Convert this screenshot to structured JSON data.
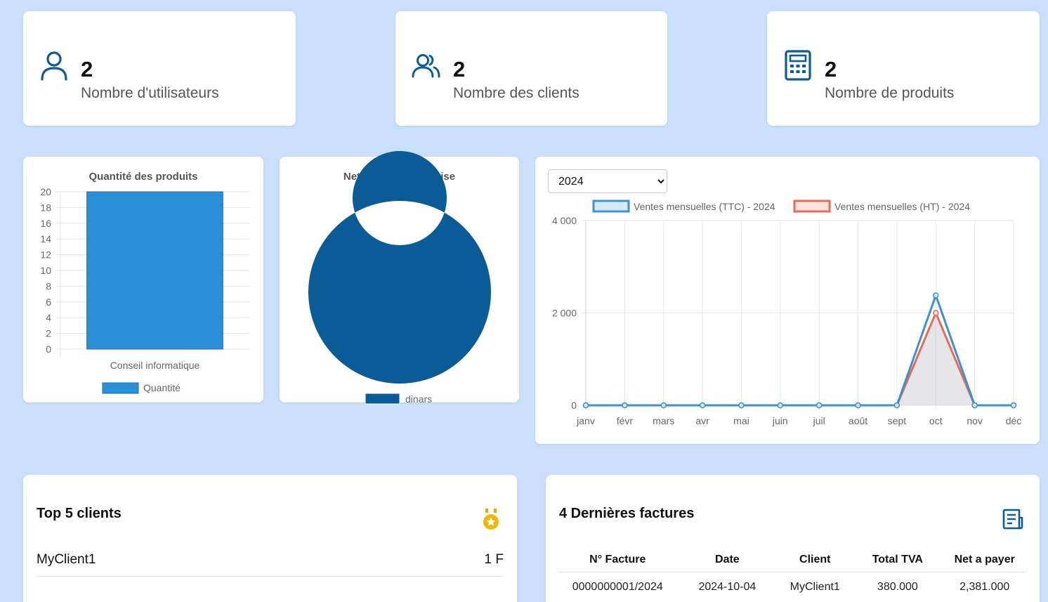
{
  "stats": [
    {
      "value": "2",
      "label": "Nombre d'utilisateurs",
      "icon": "user-icon"
    },
    {
      "value": "2",
      "label": "Nombre des clients",
      "icon": "users-icon"
    },
    {
      "value": "2",
      "label": "Nombre de produits",
      "icon": "calculator-icon"
    }
  ],
  "accent_color": "#0b5c96",
  "chart_data": [
    {
      "type": "bar",
      "title": "Quantité des produits",
      "categories": [
        "Conseil informatique"
      ],
      "series": [
        {
          "name": "Quantité",
          "values": [
            20
          ]
        }
      ],
      "ylim": [
        0,
        20
      ],
      "yticks": [
        "0",
        "2",
        "4",
        "6",
        "8",
        "10",
        "12",
        "14",
        "16",
        "18",
        "20"
      ],
      "color": "#2a8fd6",
      "grid": true,
      "legend": "bottom"
    },
    {
      "type": "pie",
      "title": "Net a payer par devise",
      "labels": [
        "dinars"
      ],
      "values": [
        2381
      ],
      "color": "#0b5c96",
      "legend": "bottom"
    },
    {
      "type": "line",
      "categories": [
        "janv",
        "févr",
        "mars",
        "avr",
        "mai",
        "juin",
        "juil",
        "août",
        "sept",
        "oct",
        "nov",
        "déc"
      ],
      "series": [
        {
          "name": "Ventes mensuelles (TTC) - 2024",
          "values": [
            0,
            0,
            0,
            0,
            0,
            0,
            0,
            0,
            0,
            2381,
            0,
            0
          ],
          "color": "#3a92d4"
        },
        {
          "name": "Ventes mensuelles (HT) - 2024",
          "values": [
            0,
            0,
            0,
            0,
            0,
            0,
            0,
            0,
            0,
            2001,
            0,
            0
          ],
          "color": "#ea6a55"
        }
      ],
      "ylim": [
        0,
        4000
      ],
      "yticks": [
        "0",
        "2 000",
        "4 000"
      ],
      "grid": true,
      "legend": "top"
    }
  ],
  "year_select": {
    "value": "2024"
  },
  "top_clients": {
    "title": "Top 5 clients",
    "icon": "medal-icon",
    "items": [
      {
        "name": "MyClient1",
        "value": "1 F"
      }
    ]
  },
  "invoices": {
    "title": "4 Dernières factures",
    "icon": "invoice-icon",
    "columns": [
      "N° Facture",
      "Date",
      "Client",
      "Total TVA",
      "Net a payer"
    ],
    "rows": [
      [
        "0000000001/2024",
        "2024-10-04",
        "MyClient1",
        "380.000",
        "2,381.000"
      ]
    ]
  }
}
